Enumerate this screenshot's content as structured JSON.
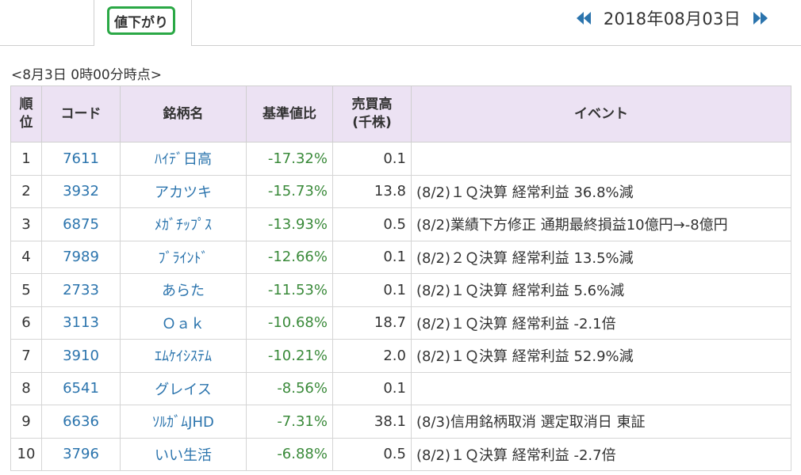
{
  "tab": {
    "label": "値下がり"
  },
  "date_nav": {
    "date": "2018年08月03日",
    "prev_icon": "double-left-arrow",
    "next_icon": "double-right-arrow"
  },
  "timestamp": "<8月3日 0時00分時点>",
  "colors": {
    "accent_green": "#2aa845",
    "link_blue": "#2b74ad",
    "change_green": "#3a8a3a",
    "header_bg": "#ece2f3",
    "arrow_blue": "#2b74ad"
  },
  "table": {
    "headers": {
      "rank": "順\n位",
      "code": "コード",
      "name": "銘柄名",
      "pct": "基準値比",
      "volume": "売買高\n(千株)",
      "event": "イベント"
    },
    "rows": [
      {
        "rank": "1",
        "code": "7611",
        "name": "ﾊｲﾃﾞ日高",
        "pct": "-17.32%",
        "volume": "0.1",
        "event": ""
      },
      {
        "rank": "2",
        "code": "3932",
        "name": "アカツキ",
        "pct": "-15.73%",
        "volume": "13.8",
        "event": "(8/2)１Ｑ決算 経常利益 36.8%減"
      },
      {
        "rank": "3",
        "code": "6875",
        "name": "ﾒｶﾞﾁｯﾌﾟｽ",
        "pct": "-13.93%",
        "volume": "0.5",
        "event": "(8/2)業績下方修正 通期最終損益10億円→-8億円"
      },
      {
        "rank": "4",
        "code": "7989",
        "name": "ﾌﾞﾗｲﾝﾄﾞ",
        "pct": "-12.66%",
        "volume": "0.1",
        "event": "(8/2)２Ｑ決算 経常利益 13.5%減"
      },
      {
        "rank": "5",
        "code": "2733",
        "name": "あらた",
        "pct": "-11.53%",
        "volume": "0.1",
        "event": "(8/2)１Ｑ決算 経常利益 5.6%減"
      },
      {
        "rank": "6",
        "code": "3113",
        "name": "Ｏａｋ",
        "pct": "-10.68%",
        "volume": "18.7",
        "event": "(8/2)１Ｑ決算 経常利益 -2.1倍"
      },
      {
        "rank": "7",
        "code": "3910",
        "name": "ｴﾑｹｲｼｽﾃﾑ",
        "pct": "-10.21%",
        "volume": "2.0",
        "event": "(8/2)１Ｑ決算 経常利益 52.9%減"
      },
      {
        "rank": "8",
        "code": "6541",
        "name": "グレイス",
        "pct": "-8.56%",
        "volume": "0.1",
        "event": ""
      },
      {
        "rank": "9",
        "code": "6636",
        "name": "ｿﾙｶﾞﾑJHD",
        "pct": "-7.31%",
        "volume": "38.1",
        "event": "(8/3)信用銘柄取消 選定取消日 東証"
      },
      {
        "rank": "10",
        "code": "3796",
        "name": "いい生活",
        "pct": "-6.88%",
        "volume": "0.5",
        "event": "(8/2)１Ｑ決算 経常利益 -2.7倍"
      }
    ]
  }
}
